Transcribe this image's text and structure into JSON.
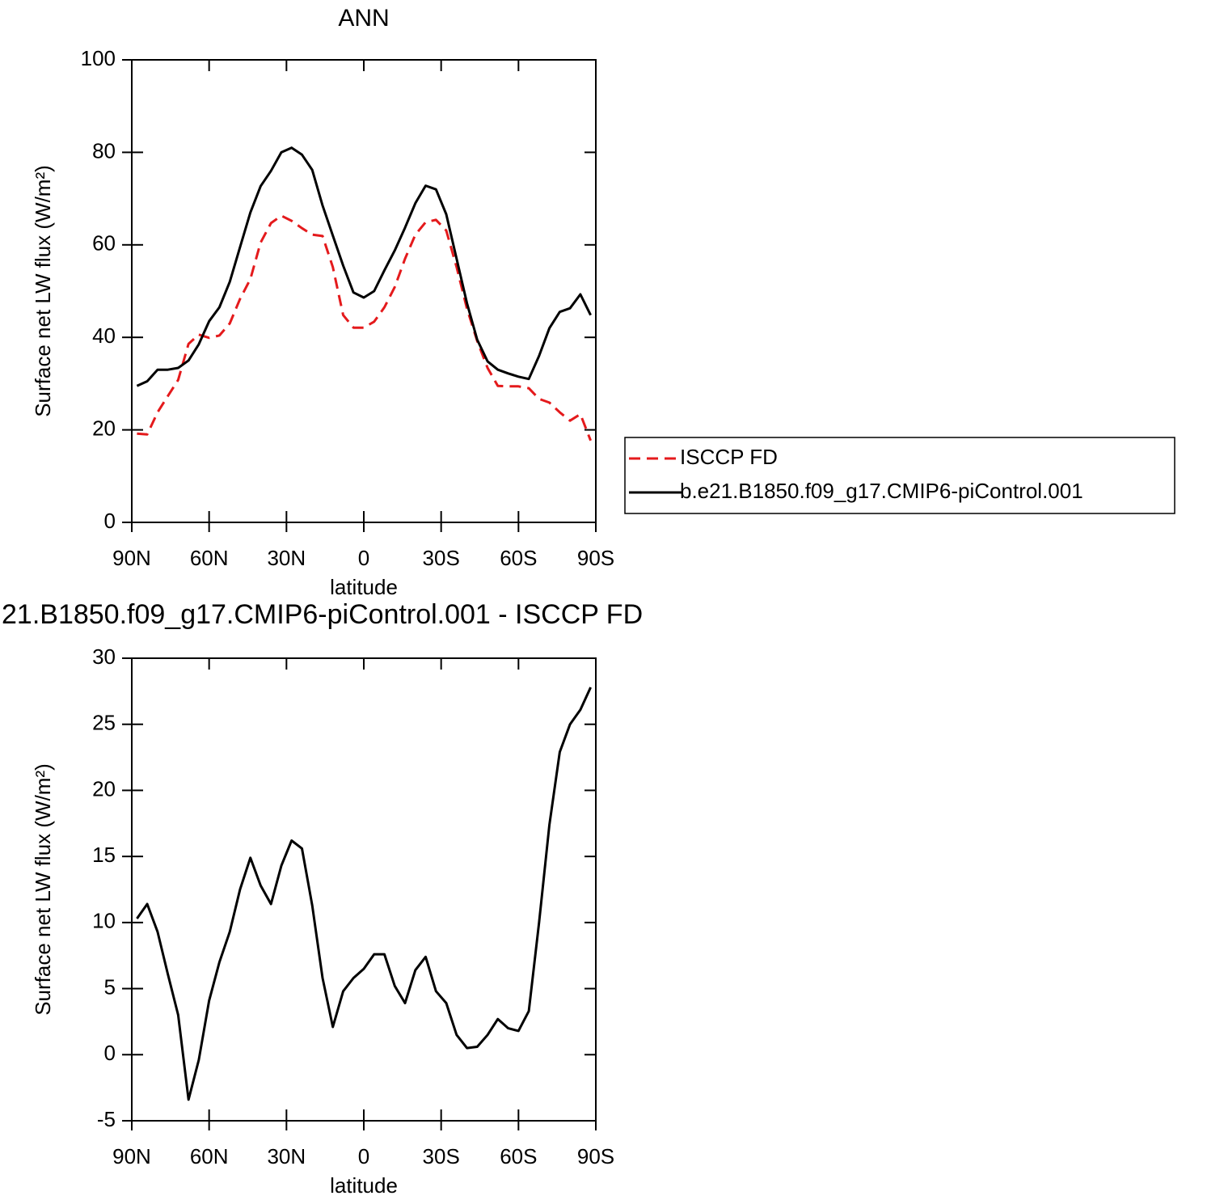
{
  "chart_data": [
    {
      "type": "line",
      "title": "ANN",
      "xlabel": "latitude",
      "ylabel": "Surface net LW flux (W/m²)",
      "x": [
        88,
        84,
        80,
        76,
        72,
        68,
        64,
        60,
        56,
        52,
        48,
        44,
        40,
        36,
        32,
        28,
        24,
        20,
        16,
        12,
        8,
        4,
        0,
        -4,
        -8,
        -12,
        -16,
        -20,
        -24,
        -28,
        -32,
        -36,
        -40,
        -44,
        -48,
        -52,
        -56,
        -60,
        -64,
        -68,
        -72,
        -76,
        -80,
        -84,
        -88
      ],
      "xlim": [
        90,
        -90
      ],
      "xticks": [
        {
          "value": 90,
          "label": "90N"
        },
        {
          "value": 60,
          "label": "60N"
        },
        {
          "value": 30,
          "label": "30N"
        },
        0,
        {
          "value": -30,
          "label": "30S"
        },
        {
          "value": -60,
          "label": "60S"
        },
        {
          "value": -90,
          "label": "90S"
        }
      ],
      "ylim": [
        0,
        100
      ],
      "yticks": [
        0,
        20,
        40,
        60,
        80,
        100
      ],
      "legend": "right",
      "series": [
        {
          "name": "ISCCP FD",
          "color": "#e41a1c",
          "dashed": true,
          "values": [
            19.2,
            19,
            23.8,
            27.3,
            30.8,
            38.6,
            40.6,
            39.9,
            40.4,
            43,
            48.3,
            52.6,
            60.5,
            64.7,
            66.3,
            65.2,
            63.6,
            62.2,
            61.9,
            55.2,
            44.8,
            42.1,
            42.1,
            43.4,
            46.5,
            50.9,
            57,
            62.2,
            64.9,
            65.4,
            63.1,
            55.2,
            46.2,
            39.2,
            33.4,
            29.5,
            29.4,
            29.4,
            29,
            26.7,
            25.9,
            23.8,
            22,
            23.4,
            17.7
          ]
        },
        {
          "name": "b.e21.B1850.f09_g17.CMIP6-piControl.001",
          "color": "#000000",
          "dashed": false,
          "values": [
            29.5,
            30.5,
            33,
            33,
            33.4,
            35,
            38.5,
            43.5,
            46.5,
            52,
            59.5,
            67,
            72.7,
            76,
            80,
            81,
            79.5,
            76.2,
            68.5,
            62,
            55.5,
            49.7,
            48.6,
            50,
            54.5,
            58.8,
            63.7,
            69,
            72.8,
            72,
            66.6,
            57,
            47.4,
            39.5,
            34.8,
            33,
            32.2,
            31.5,
            31,
            36,
            42,
            45.5,
            46.3,
            49.3,
            44.8
          ]
        }
      ]
    },
    {
      "type": "line",
      "title": "21.B1850.f09_g17.CMIP6-piControl.001 - ISCCP FD",
      "xlabel": "latitude",
      "ylabel": "Surface net LW flux (W/m²)",
      "x": [
        88,
        84,
        80,
        76,
        72,
        68,
        64,
        60,
        56,
        52,
        48,
        44,
        40,
        36,
        32,
        28,
        24,
        20,
        16,
        12,
        8,
        4,
        0,
        -4,
        -8,
        -12,
        -16,
        -20,
        -24,
        -28,
        -32,
        -36,
        -40,
        -44,
        -48,
        -52,
        -56,
        -60,
        -64,
        -68,
        -72,
        -76,
        -80,
        -84,
        -88
      ],
      "xlim": [
        90,
        -90
      ],
      "xticks": [
        {
          "value": 90,
          "label": "90N"
        },
        {
          "value": 60,
          "label": "60N"
        },
        {
          "value": 30,
          "label": "30N"
        },
        0,
        {
          "value": -30,
          "label": "30S"
        },
        {
          "value": -60,
          "label": "60S"
        },
        {
          "value": -90,
          "label": "90S"
        }
      ],
      "ylim": [
        -5,
        30
      ],
      "yticks": [
        -5,
        0,
        5,
        10,
        15,
        20,
        25,
        30
      ],
      "series": [
        {
          "color": "#000000",
          "dashed": false,
          "values": [
            10.3,
            11.4,
            9.3,
            6.1,
            3,
            -3.4,
            -0.4,
            4.1,
            7,
            9.3,
            12.5,
            14.9,
            12.8,
            11.4,
            14.3,
            16.2,
            15.6,
            11.3,
            5.8,
            2.1,
            4.8,
            5.8,
            6.5,
            7.6,
            7.6,
            5.2,
            3.9,
            6.4,
            7.4,
            4.8,
            3.9,
            1.5,
            0.5,
            0.6,
            1.5,
            2.7,
            2,
            1.8,
            3.3,
            10,
            17.4,
            22.9,
            25,
            26.1,
            27.8
          ]
        }
      ]
    }
  ]
}
